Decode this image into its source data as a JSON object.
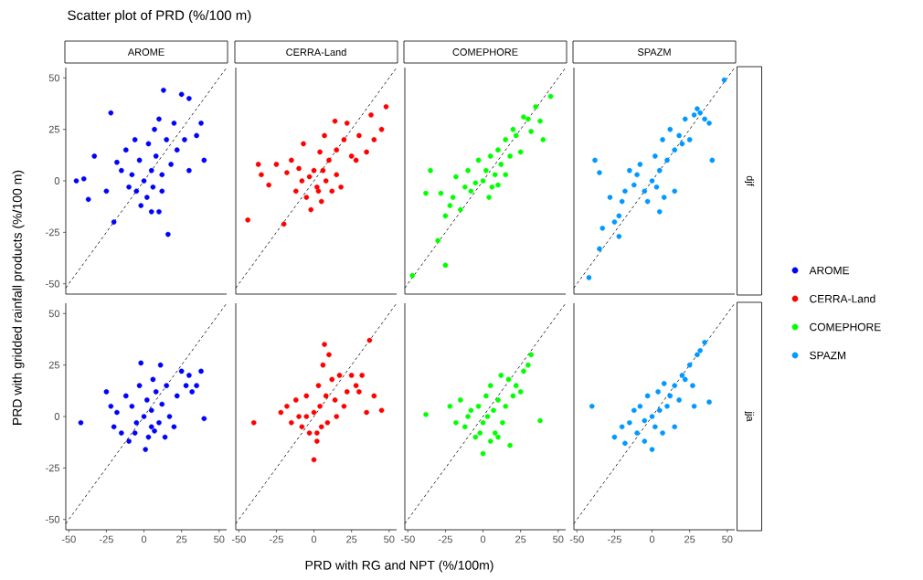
{
  "chart_data": [
    {
      "type": "scatter",
      "title": "AROME",
      "xlim": [
        -52,
        55
      ],
      "ylim": [
        -55,
        55
      ],
      "yticks": [
        -50,
        -25,
        0,
        25,
        50
      ],
      "tick_labels": "y",
      "marker": "circle",
      "legend": "right",
      "series": [
        {
          "name": "AROME",
          "color": "#0000ff",
          "x": [
            -45,
            -40,
            -37,
            -33,
            -25,
            -22,
            -20,
            -18,
            -15,
            -12,
            -10,
            -8,
            -5,
            -3,
            0,
            2,
            3,
            5,
            5,
            7,
            8,
            10,
            10,
            12,
            13,
            15,
            16,
            18,
            20,
            22,
            25,
            27,
            30,
            30,
            35,
            38,
            40,
            -2,
            6,
            12,
            -6
          ],
          "values": [
            0,
            1,
            -9,
            12,
            -5,
            33,
            -20,
            9,
            5,
            15,
            -3,
            3,
            -5,
            10,
            0,
            -8,
            18,
            5,
            -15,
            25,
            12,
            -15,
            30,
            3,
            44,
            20,
            -26,
            8,
            28,
            15,
            42,
            20,
            40,
            5,
            22,
            28,
            10,
            -12,
            -3,
            -5,
            20
          ]
        },
        {
          "type": "line",
          "color": "#000000",
          "marker": "none",
          "line_style": "dashed",
          "x": [
            -52,
            55
          ],
          "values": [
            -52,
            55
          ]
        }
      ]
    },
    {
      "type": "scatter",
      "title": "CERRA-Land",
      "xlim": [
        -52,
        55
      ],
      "ylim": [
        -55,
        55
      ],
      "tick_labels": false,
      "marker": "circle",
      "legend": "right",
      "series": [
        {
          "name": "CERRA-Land",
          "color": "#ff0000",
          "x": [
            -44,
            -37,
            -35,
            -30,
            -25,
            -20,
            -18,
            -15,
            -12,
            -10,
            -7,
            -5,
            -3,
            0,
            2,
            4,
            5,
            7,
            8,
            10,
            12,
            14,
            15,
            18,
            20,
            22,
            25,
            28,
            30,
            35,
            38,
            40,
            45,
            48,
            -2,
            6,
            3,
            15,
            -8
          ],
          "values": [
            -19,
            8,
            3,
            -2,
            8,
            -21,
            4,
            10,
            -5,
            6,
            18,
            -8,
            2,
            5,
            -3,
            14,
            -10,
            22,
            0,
            10,
            -5,
            29,
            15,
            -3,
            20,
            28,
            12,
            10,
            22,
            14,
            32,
            20,
            25,
            36,
            -14,
            5,
            -5,
            3,
            0
          ]
        },
        {
          "type": "line",
          "color": "#000000",
          "marker": "none",
          "line_style": "dashed",
          "x": [
            -52,
            55
          ],
          "values": [
            -52,
            55
          ]
        }
      ]
    },
    {
      "type": "scatter",
      "title": "COMEPHORE",
      "xlim": [
        -52,
        55
      ],
      "ylim": [
        -55,
        55
      ],
      "tick_labels": false,
      "marker": "circle",
      "legend": "right",
      "series": [
        {
          "name": "COMEPHORE",
          "color": "#00ff00",
          "x": [
            -47,
            -38,
            -35,
            -30,
            -25,
            -25,
            -22,
            -20,
            -15,
            -12,
            -10,
            -8,
            -5,
            -3,
            0,
            2,
            4,
            5,
            8,
            10,
            12,
            15,
            15,
            18,
            20,
            22,
            25,
            27,
            30,
            32,
            35,
            38,
            40,
            45,
            -18,
            -28,
            6,
            10
          ],
          "values": [
            -46,
            -6,
            5,
            -29,
            -41,
            -17,
            -12,
            -8,
            -14,
            -3,
            5,
            -5,
            -1,
            10,
            0,
            5,
            -8,
            12,
            3,
            15,
            8,
            3,
            20,
            12,
            25,
            22,
            14,
            31,
            30,
            24,
            36,
            29,
            20,
            41,
            2,
            -6,
            -3,
            -2
          ]
        },
        {
          "type": "line",
          "color": "#000000",
          "marker": "none",
          "line_style": "dashed",
          "x": [
            -52,
            55
          ],
          "values": [
            -52,
            55
          ]
        }
      ]
    },
    {
      "type": "scatter",
      "title": "SPAZM",
      "y2label": "djf",
      "xlim": [
        -52,
        55
      ],
      "ylim": [
        -55,
        55
      ],
      "tick_labels": false,
      "marker": "circle",
      "legend": "right",
      "series": [
        {
          "name": "SPAZM",
          "color": "#0099ff",
          "x": [
            -42,
            -35,
            -33,
            -38,
            -35,
            -25,
            -22,
            -20,
            -18,
            -15,
            -12,
            -10,
            -8,
            -5,
            -3,
            0,
            2,
            3,
            5,
            7,
            8,
            10,
            12,
            15,
            15,
            18,
            20,
            22,
            25,
            28,
            30,
            32,
            35,
            38,
            40,
            48,
            -22,
            5,
            -28
          ],
          "values": [
            -47,
            -33,
            -23,
            10,
            4,
            -20,
            -17,
            -10,
            -5,
            5,
            -2,
            3,
            8,
            -5,
            -10,
            0,
            12,
            -3,
            5,
            20,
            -8,
            10,
            25,
            15,
            -5,
            22,
            18,
            30,
            20,
            32,
            35,
            33,
            30,
            28,
            10,
            49,
            -27,
            -15,
            -8
          ]
        },
        {
          "type": "line",
          "color": "#000000",
          "marker": "none",
          "line_style": "dashed",
          "x": [
            -52,
            55
          ],
          "values": [
            -52,
            55
          ]
        }
      ]
    },
    {
      "type": "scatter",
      "xlim": [
        -52,
        55
      ],
      "ylim": [
        -55,
        55
      ],
      "xticks": [
        -50,
        -25,
        0,
        25,
        50
      ],
      "yticks": [
        -50,
        -25,
        0,
        25,
        50
      ],
      "marker": "circle",
      "series": [
        {
          "color": "#0000ff",
          "x": [
            -42,
            -25,
            -22,
            -20,
            -18,
            -15,
            -12,
            -10,
            -8,
            -5,
            -3,
            -2,
            0,
            1,
            2,
            3,
            5,
            6,
            7,
            8,
            10,
            11,
            12,
            14,
            15,
            17,
            20,
            22,
            25,
            28,
            30,
            32,
            35,
            38,
            40,
            -6,
            5
          ],
          "values": [
            -3,
            12,
            5,
            -5,
            2,
            -8,
            10,
            -12,
            5,
            -3,
            15,
            26,
            0,
            -16,
            8,
            -10,
            3,
            18,
            -7,
            12,
            -3,
            25,
            6,
            -10,
            15,
            0,
            -5,
            10,
            22,
            15,
            20,
            12,
            15,
            22,
            -1,
            -8,
            -5
          ]
        },
        {
          "type": "line",
          "color": "#000000",
          "marker": "none",
          "line_style": "dashed",
          "x": [
            -52,
            55
          ],
          "values": [
            -52,
            55
          ]
        }
      ]
    },
    {
      "type": "scatter",
      "xlim": [
        -52,
        55
      ],
      "ylim": [
        -55,
        55
      ],
      "xticks": [
        -50,
        -25,
        0,
        25,
        50
      ],
      "tick_labels": "x",
      "marker": "circle",
      "series": [
        {
          "color": "#ff0000",
          "x": [
            -40,
            -22,
            -18,
            -15,
            -12,
            -10,
            -8,
            -5,
            -3,
            0,
            0,
            2,
            3,
            4,
            5,
            6,
            7,
            8,
            9,
            10,
            12,
            14,
            15,
            17,
            20,
            22,
            25,
            28,
            30,
            32,
            35,
            37,
            40,
            45,
            -5,
            2
          ],
          "values": [
            -3,
            2,
            5,
            -3,
            8,
            0,
            -5,
            10,
            -8,
            2,
            -21,
            -12,
            15,
            5,
            -5,
            25,
            35,
            10,
            -3,
            30,
            18,
            8,
            0,
            20,
            5,
            12,
            20,
            15,
            12,
            20,
            2,
            37,
            10,
            3,
            0,
            -8
          ]
        },
        {
          "type": "line",
          "color": "#000000",
          "marker": "none",
          "line_style": "dashed",
          "x": [
            -52,
            55
          ],
          "values": [
            -52,
            55
          ]
        }
      ]
    },
    {
      "type": "scatter",
      "xlim": [
        -52,
        55
      ],
      "ylim": [
        -55,
        55
      ],
      "xticks": [
        -50,
        -25,
        0,
        25,
        50
      ],
      "tick_labels": "x",
      "marker": "circle",
      "series": [
        {
          "color": "#00ff00",
          "x": [
            -38,
            -22,
            -18,
            -15,
            -12,
            -10,
            -8,
            -5,
            -3,
            0,
            0,
            2,
            3,
            5,
            5,
            7,
            8,
            10,
            12,
            13,
            15,
            17,
            18,
            20,
            22,
            25,
            27,
            30,
            32,
            38,
            -2,
            10
          ],
          "values": [
            1,
            5,
            -3,
            8,
            -5,
            0,
            3,
            -10,
            5,
            -3,
            -18,
            10,
            0,
            -12,
            15,
            3,
            -8,
            8,
            20,
            -3,
            5,
            18,
            -14,
            10,
            15,
            12,
            22,
            25,
            30,
            -2,
            -8,
            -10
          ]
        },
        {
          "type": "line",
          "color": "#000000",
          "marker": "none",
          "line_style": "dashed",
          "x": [
            -52,
            55
          ],
          "values": [
            -52,
            55
          ]
        }
      ]
    },
    {
      "type": "scatter",
      "y2label": "jja",
      "xlim": [
        -52,
        55
      ],
      "ylim": [
        -55,
        55
      ],
      "xticks": [
        -50,
        -25,
        0,
        25,
        50
      ],
      "tick_labels": "x",
      "marker": "circle",
      "series": [
        {
          "color": "#0099ff",
          "x": [
            -40,
            -25,
            -20,
            -18,
            -15,
            -12,
            -10,
            -8,
            -5,
            -3,
            0,
            0,
            2,
            4,
            5,
            7,
            8,
            10,
            12,
            15,
            15,
            18,
            20,
            22,
            25,
            27,
            30,
            32,
            35,
            38,
            28,
            -5
          ],
          "values": [
            5,
            -10,
            -5,
            -13,
            -3,
            3,
            -8,
            5,
            -2,
            10,
            0,
            -16,
            -5,
            12,
            3,
            -8,
            16,
            5,
            10,
            15,
            -5,
            8,
            20,
            18,
            25,
            15,
            30,
            32,
            36,
            7,
            5,
            -12
          ]
        },
        {
          "type": "line",
          "color": "#000000",
          "marker": "none",
          "line_style": "dashed",
          "x": [
            -52,
            55
          ],
          "values": [
            -52,
            55
          ]
        }
      ]
    },
    {
      "type": "other",
      "title": "Scatter plot of PRD (%/100 m)",
      "xlabel": "PRD with RG and NPT (%/100m)",
      "ylabel": "PRD with gridded rainfall products (%/100 m)"
    }
  ]
}
